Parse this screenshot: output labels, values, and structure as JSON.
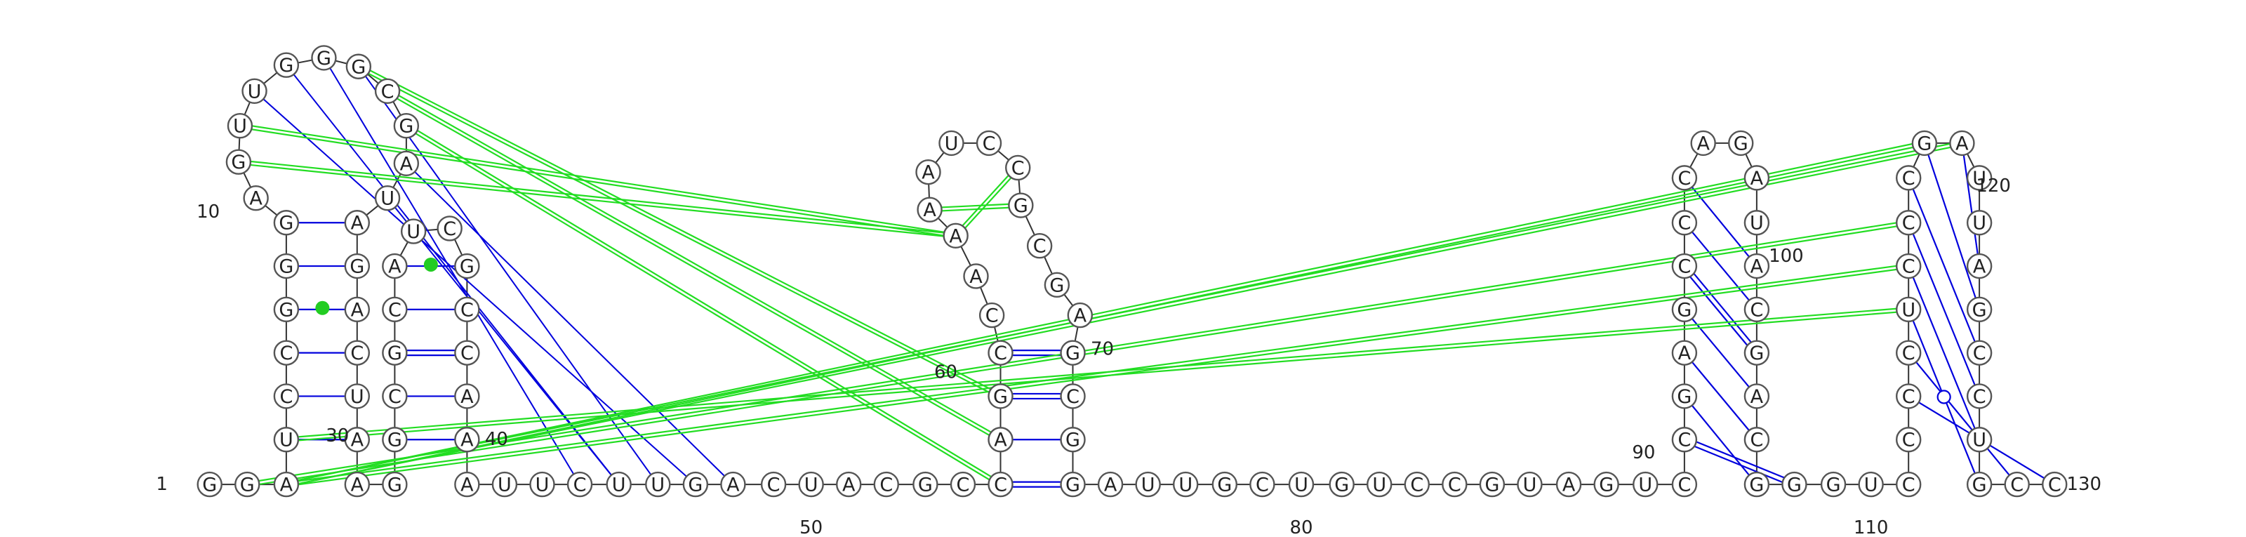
{
  "sequence": "GGAUCCGGGAGUUGGGCGAUAGACUAAGGCGCAUCGCCAAAUUCUUGACUACGCCAGCCAAAAUCCGCGAGCGGAUUGCUGUCCGUAGUCCGAGCCCAGAUACGACGGGUCCCCUCCCGAUUAGCCUGCCC",
  "number_labels": [
    "1",
    "10",
    "30",
    "40",
    "50",
    "60",
    "70",
    "80",
    "90",
    "100",
    "110",
    "120",
    "130"
  ]
}
